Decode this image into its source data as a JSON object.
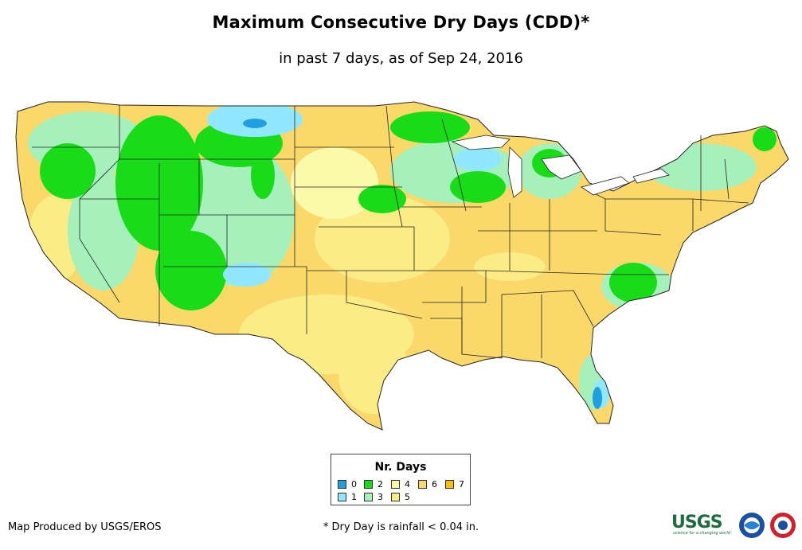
{
  "title": "Maximum Consecutive Dry Days (CDD)*",
  "subtitle": "in past 7 days, as of Sep 24, 2016",
  "legend": {
    "title": "Nr. Days",
    "items": [
      {
        "label": "0",
        "color": "#1f9fe0"
      },
      {
        "label": "1",
        "color": "#8fe8ff"
      },
      {
        "label": "2",
        "color": "#18dc18"
      },
      {
        "label": "3",
        "color": "#a6f0bc"
      },
      {
        "label": "4",
        "color": "#fafaaa"
      },
      {
        "label": "5",
        "color": "#fbec86"
      },
      {
        "label": "6",
        "color": "#fbd86a"
      },
      {
        "label": "7",
        "color": "#f8c000"
      }
    ]
  },
  "credit": "Map Produced by USGS/EROS",
  "footnote": "* Dry Day is rainfall < 0.04 in.",
  "logos": {
    "usgs": "USGS",
    "usgs_tagline": "science for a changing world",
    "noaa": "noaa-logo",
    "nws": "nws-logo"
  }
}
